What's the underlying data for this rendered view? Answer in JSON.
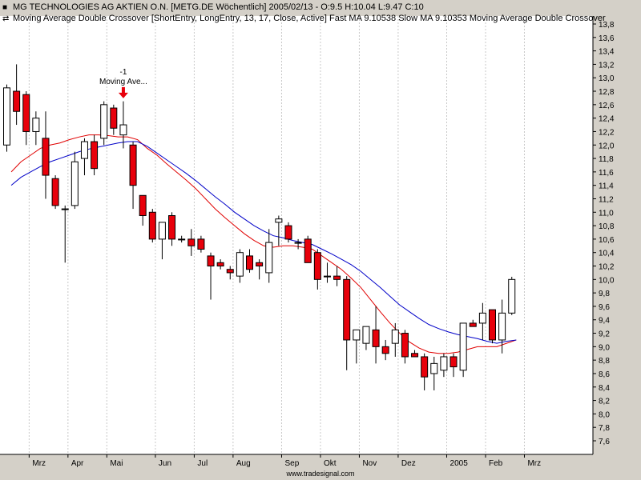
{
  "header": {
    "line1": "MG TECHNOLOGIES AG AKTIEN O.N. [METG.DE  Wöchentlich] 2005/02/13 - O:9.5 H:10.04 L:9.47 C:10",
    "line2": "Moving Average Double Crossover [ShortEntry, LongEntry, 13, 17, Close, Active] Fast MA 9.10538 Slow MA 9.10353 Moving Average Double Crossover"
  },
  "icons": {
    "line1": "chart-bullet-icon",
    "line2": "crossover-arrows-icon"
  },
  "footer": "www.tradesignal.com",
  "colors": {
    "background": "#d4d0c8",
    "plot": "#ffffff",
    "up": "#ffffff",
    "down": "#e8000b",
    "fast_ma": "#e00000",
    "slow_ma": "#0000c8",
    "signal": "#e8000b"
  },
  "chart_data": {
    "type": "candlestick",
    "ylim": [
      7.45,
      13.95
    ],
    "y_ticks": [
      "13,8",
      "13,6",
      "13,4",
      "13,2",
      "13,0",
      "12,8",
      "12,6",
      "12,4",
      "12,2",
      "12,0",
      "11,8",
      "11,6",
      "11,4",
      "11,2",
      "11,0",
      "10,8",
      "10,6",
      "10,4",
      "10,2",
      "10,0",
      "9,8",
      "9,6",
      "9,4",
      "9,2",
      "9,0",
      "8,8",
      "8,6",
      "8,4",
      "8,2",
      "8,0",
      "7,8",
      "7,6"
    ],
    "x_labels": [
      {
        "label": "Mrz",
        "week": 3
      },
      {
        "label": "Apr",
        "week": 7
      },
      {
        "label": "Mai",
        "week": 11
      },
      {
        "label": "Jun",
        "week": 16
      },
      {
        "label": "Jul",
        "week": 20
      },
      {
        "label": "Aug",
        "week": 24
      },
      {
        "label": "Sep",
        "week": 29
      },
      {
        "label": "Okt",
        "week": 33
      },
      {
        "label": "Nov",
        "week": 37
      },
      {
        "label": "Dez",
        "week": 41
      },
      {
        "label": "2005",
        "week": 46
      },
      {
        "label": "Feb",
        "week": 50
      },
      {
        "label": "Mrz",
        "week": 54
      }
    ],
    "candles": [
      {
        "o": 12.0,
        "h": 12.9,
        "l": 11.9,
        "c": 12.85
      },
      {
        "o": 12.8,
        "h": 13.2,
        "l": 12.3,
        "c": 12.5
      },
      {
        "o": 12.75,
        "h": 12.8,
        "l": 12.0,
        "c": 12.2
      },
      {
        "o": 12.2,
        "h": 12.5,
        "l": 12.0,
        "c": 12.4
      },
      {
        "o": 12.1,
        "h": 12.5,
        "l": 11.2,
        "c": 11.55
      },
      {
        "o": 11.5,
        "h": 11.55,
        "l": 11.05,
        "c": 11.1
      },
      {
        "o": 11.05,
        "h": 11.1,
        "l": 10.25,
        "c": 11.05
      },
      {
        "o": 11.1,
        "h": 11.9,
        "l": 11.05,
        "c": 11.75
      },
      {
        "o": 11.8,
        "h": 12.1,
        "l": 11.55,
        "c": 12.05
      },
      {
        "o": 12.05,
        "h": 12.15,
        "l": 11.55,
        "c": 11.65
      },
      {
        "o": 12.1,
        "h": 12.65,
        "l": 12.0,
        "c": 12.6
      },
      {
        "o": 12.55,
        "h": 12.6,
        "l": 12.15,
        "c": 12.25
      },
      {
        "o": 12.15,
        "h": 12.65,
        "l": 11.95,
        "c": 12.3
      },
      {
        "o": 12.0,
        "h": 12.05,
        "l": 11.05,
        "c": 11.4
      },
      {
        "o": 11.25,
        "h": 11.25,
        "l": 10.8,
        "c": 10.95
      },
      {
        "o": 11.0,
        "h": 11.05,
        "l": 10.55,
        "c": 10.6
      },
      {
        "o": 10.6,
        "h": 10.85,
        "l": 10.3,
        "c": 10.85
      },
      {
        "o": 10.95,
        "h": 11.0,
        "l": 10.5,
        "c": 10.6
      },
      {
        "o": 10.6,
        "h": 10.65,
        "l": 10.55,
        "c": 10.6
      },
      {
        "o": 10.6,
        "h": 10.75,
        "l": 10.35,
        "c": 10.5
      },
      {
        "o": 10.6,
        "h": 10.65,
        "l": 10.4,
        "c": 10.45
      },
      {
        "o": 10.35,
        "h": 10.4,
        "l": 9.7,
        "c": 10.2
      },
      {
        "o": 10.25,
        "h": 10.3,
        "l": 10.15,
        "c": 10.2
      },
      {
        "o": 10.15,
        "h": 10.2,
        "l": 10.0,
        "c": 10.1
      },
      {
        "o": 10.05,
        "h": 10.45,
        "l": 9.95,
        "c": 10.4
      },
      {
        "o": 10.35,
        "h": 10.45,
        "l": 10.1,
        "c": 10.15
      },
      {
        "o": 10.25,
        "h": 10.3,
        "l": 10.0,
        "c": 10.2
      },
      {
        "o": 10.1,
        "h": 10.75,
        "l": 9.95,
        "c": 10.55
      },
      {
        "o": 10.85,
        "h": 10.95,
        "l": 10.5,
        "c": 10.9
      },
      {
        "o": 10.8,
        "h": 10.85,
        "l": 10.55,
        "c": 10.6
      },
      {
        "o": 10.55,
        "h": 10.6,
        "l": 10.45,
        "c": 10.55
      },
      {
        "o": 10.6,
        "h": 10.65,
        "l": 10.25,
        "c": 10.25
      },
      {
        "o": 10.4,
        "h": 10.45,
        "l": 9.85,
        "c": 10.0
      },
      {
        "o": 10.05,
        "h": 10.25,
        "l": 9.95,
        "c": 10.05
      },
      {
        "o": 10.05,
        "h": 10.2,
        "l": 9.9,
        "c": 10.0
      },
      {
        "o": 10.0,
        "h": 10.05,
        "l": 8.65,
        "c": 9.1
      },
      {
        "o": 9.1,
        "h": 9.25,
        "l": 8.75,
        "c": 9.25
      },
      {
        "o": 9.05,
        "h": 9.3,
        "l": 8.95,
        "c": 9.3
      },
      {
        "o": 9.25,
        "h": 9.6,
        "l": 8.75,
        "c": 9.0
      },
      {
        "o": 9.0,
        "h": 9.1,
        "l": 8.8,
        "c": 8.9
      },
      {
        "o": 9.05,
        "h": 9.35,
        "l": 8.85,
        "c": 9.25
      },
      {
        "o": 9.2,
        "h": 9.25,
        "l": 8.75,
        "c": 8.85
      },
      {
        "o": 8.9,
        "h": 8.95,
        "l": 8.85,
        "c": 8.85
      },
      {
        "o": 8.85,
        "h": 8.9,
        "l": 8.35,
        "c": 8.55
      },
      {
        "o": 8.6,
        "h": 8.85,
        "l": 8.35,
        "c": 8.75
      },
      {
        "o": 8.65,
        "h": 8.9,
        "l": 8.55,
        "c": 8.85
      },
      {
        "o": 8.85,
        "h": 8.9,
        "l": 8.55,
        "c": 8.7
      },
      {
        "o": 8.65,
        "h": 9.35,
        "l": 8.55,
        "c": 9.35
      },
      {
        "o": 9.35,
        "h": 9.4,
        "l": 9.3,
        "c": 9.3
      },
      {
        "o": 9.35,
        "h": 9.65,
        "l": 9.1,
        "c": 9.5
      },
      {
        "o": 9.55,
        "h": 9.55,
        "l": 9.05,
        "c": 9.1
      },
      {
        "o": 9.1,
        "h": 9.7,
        "l": 8.9,
        "c": 9.5
      },
      {
        "o": 9.5,
        "h": 10.04,
        "l": 9.47,
        "c": 10.0
      }
    ],
    "series": [
      {
        "name": "Fast MA",
        "values": [
          11.6,
          11.75,
          11.85,
          11.95,
          12.0,
          12.03,
          12.08,
          12.12,
          12.15,
          12.15,
          12.14,
          12.12,
          12.12,
          12.08,
          11.95,
          11.85,
          11.72,
          11.6,
          11.48,
          11.35,
          11.2,
          11.05,
          10.92,
          10.8,
          10.68,
          10.58,
          10.5,
          10.48,
          10.5,
          10.5,
          10.48,
          10.45,
          10.35,
          10.25,
          10.15,
          10.02,
          9.88,
          9.7,
          9.52,
          9.35,
          9.2,
          9.07,
          8.98,
          8.92,
          8.9,
          8.9,
          8.92,
          8.96,
          9.0,
          9.0,
          9.0,
          9.05,
          9.1
        ]
      },
      {
        "name": "Slow MA",
        "values": [
          11.4,
          11.52,
          11.6,
          11.68,
          11.75,
          11.8,
          11.85,
          11.9,
          11.94,
          11.97,
          12.0,
          12.03,
          12.05,
          12.05,
          11.98,
          11.88,
          11.78,
          11.68,
          11.58,
          11.47,
          11.35,
          11.23,
          11.12,
          11.0,
          10.9,
          10.8,
          10.72,
          10.65,
          10.62,
          10.58,
          10.55,
          10.52,
          10.45,
          10.38,
          10.3,
          10.22,
          10.12,
          10.0,
          9.88,
          9.75,
          9.62,
          9.52,
          9.42,
          9.33,
          9.27,
          9.22,
          9.18,
          9.15,
          9.12,
          9.08,
          9.05,
          9.08,
          9.1
        ]
      }
    ],
    "annotations": [
      {
        "week": 12,
        "label": "-1",
        "text": "Moving Ave...",
        "value": 12.6
      }
    ]
  }
}
